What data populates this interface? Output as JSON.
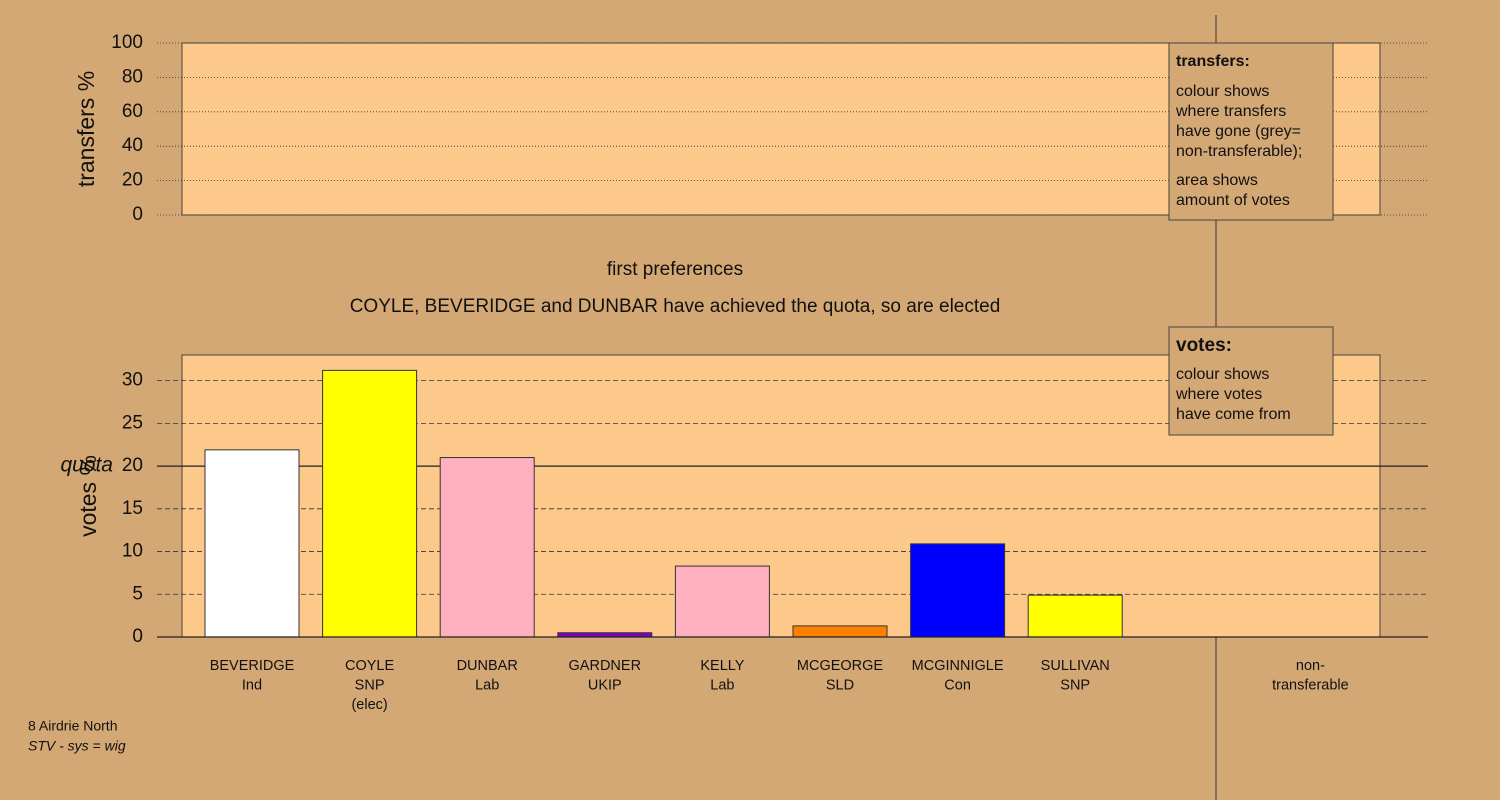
{
  "chart_data": [
    {
      "type": "bar",
      "y_label": "transfers %",
      "ylim": [
        0,
        100
      ],
      "yticks": [
        0,
        20,
        40,
        60,
        80,
        100
      ],
      "grid": true,
      "legend_note": {
        "heading": "transfers:",
        "paragraphs": [
          [
            "colour shows",
            "where transfers",
            "have gone (grey=",
            "non-transferable);"
          ],
          [
            "area shows",
            "amount of votes"
          ]
        ]
      }
    },
    {
      "type": "bar",
      "title": "first preferences",
      "subtitle": "COYLE, BEVERIDGE and DUNBAR have achieved the quota, so are elected",
      "y_label": "votes %",
      "ylim": [
        0,
        33
      ],
      "yticks": [
        0,
        5,
        10,
        15,
        20,
        25,
        30
      ],
      "grid": true,
      "quota": {
        "label": "quota",
        "value": 20
      },
      "categories": [
        [
          "BEVERIDGE",
          "Ind"
        ],
        [
          "COYLE",
          "SNP",
          "(elec)"
        ],
        [
          "DUNBAR",
          "Lab"
        ],
        [
          "GARDNER",
          "UKIP"
        ],
        [
          "KELLY",
          "Lab"
        ],
        [
          "MCGEORGE",
          "SLD"
        ],
        [
          "MCGINNIGLE",
          "Con"
        ],
        [
          "SULLIVAN",
          "SNP"
        ]
      ],
      "values": [
        21.9,
        31.2,
        21.0,
        0.5,
        8.3,
        1.3,
        10.9,
        4.9
      ],
      "colors": [
        "#ffffff",
        "#ffff00",
        "#ffb0c0",
        "#8000c0",
        "#ffb0c0",
        "#ff8000",
        "#0000ff",
        "#ffff00"
      ],
      "nontransferable_label": [
        "non-",
        "transferable"
      ],
      "legend_note": {
        "heading": "votes:",
        "paragraphs": [
          [
            "colour shows",
            "where votes",
            "have come from"
          ]
        ]
      }
    }
  ],
  "footer": {
    "location": "8 Airdrie North",
    "system": "STV - sys = wig"
  }
}
